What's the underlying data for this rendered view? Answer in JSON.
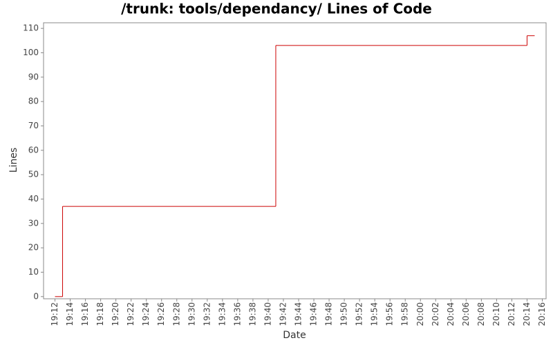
{
  "chart_data": {
    "type": "step-line",
    "title": "/trunk: tools/dependancy/ Lines of Code",
    "x_label": "Date",
    "y_label": "Lines",
    "x": [
      "19:12",
      "19:13",
      "19:41",
      "20:14",
      "20:15"
    ],
    "series": [
      {
        "name": "Lines",
        "color": "#cc0000",
        "values": [
          0,
          37,
          103,
          107,
          107
        ]
      }
    ],
    "xlim": [
      "19:10:30",
      "20:16:30"
    ],
    "xticks": [
      "19:12",
      "19:14",
      "19:16",
      "19:18",
      "19:20",
      "19:22",
      "19:24",
      "19:26",
      "19:28",
      "19:30",
      "19:32",
      "19:34",
      "19:36",
      "19:38",
      "19:40",
      "19:42",
      "19:44",
      "19:46",
      "19:48",
      "19:50",
      "19:52",
      "19:54",
      "19:56",
      "19:58",
      "20:00",
      "20:02",
      "20:04",
      "20:06",
      "20:08",
      "20:10",
      "20:12",
      "20:14",
      "20:16"
    ],
    "ylim": [
      -0.9,
      112.3
    ],
    "yticks": [
      0,
      10,
      20,
      30,
      40,
      50,
      60,
      70,
      80,
      90,
      100,
      110
    ],
    "grid": false
  }
}
